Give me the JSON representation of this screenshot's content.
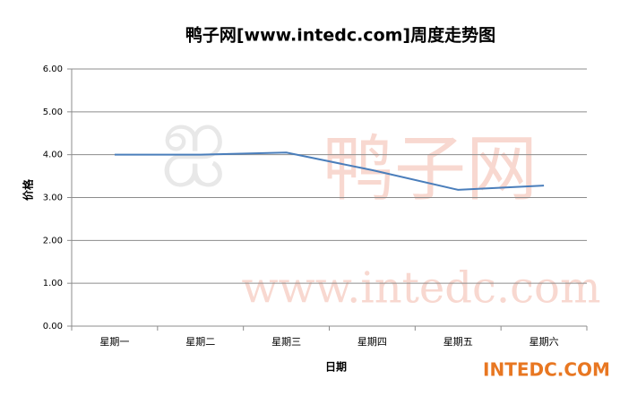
{
  "chart_data": {
    "type": "line",
    "title": "鸭子网[www.intedc.com]周度走势图",
    "x_label": "日期",
    "y_label": "价格",
    "categories": [
      "星期一",
      "星期二",
      "星期三",
      "星期四",
      "星期五",
      "星期六"
    ],
    "series": [
      {
        "name": "价格",
        "color": "#4a7ebb",
        "values": [
          4.0,
          4.0,
          4.05,
          3.64,
          3.18,
          3.28
        ]
      }
    ],
    "ylim": [
      0,
      6
    ],
    "yticks": [
      {
        "value": 0,
        "label": "0.00"
      },
      {
        "value": 1,
        "label": "1.00"
      },
      {
        "value": 2,
        "label": "2.00"
      },
      {
        "value": 3,
        "label": "3.00"
      },
      {
        "value": 4,
        "label": "4.00"
      },
      {
        "value": 5,
        "label": "5.00"
      },
      {
        "value": 6,
        "label": "6.00"
      }
    ],
    "grid": true,
    "annotations": [
      "鸭子网",
      "www.intedc.com",
      "INTEDC.COM"
    ]
  }
}
